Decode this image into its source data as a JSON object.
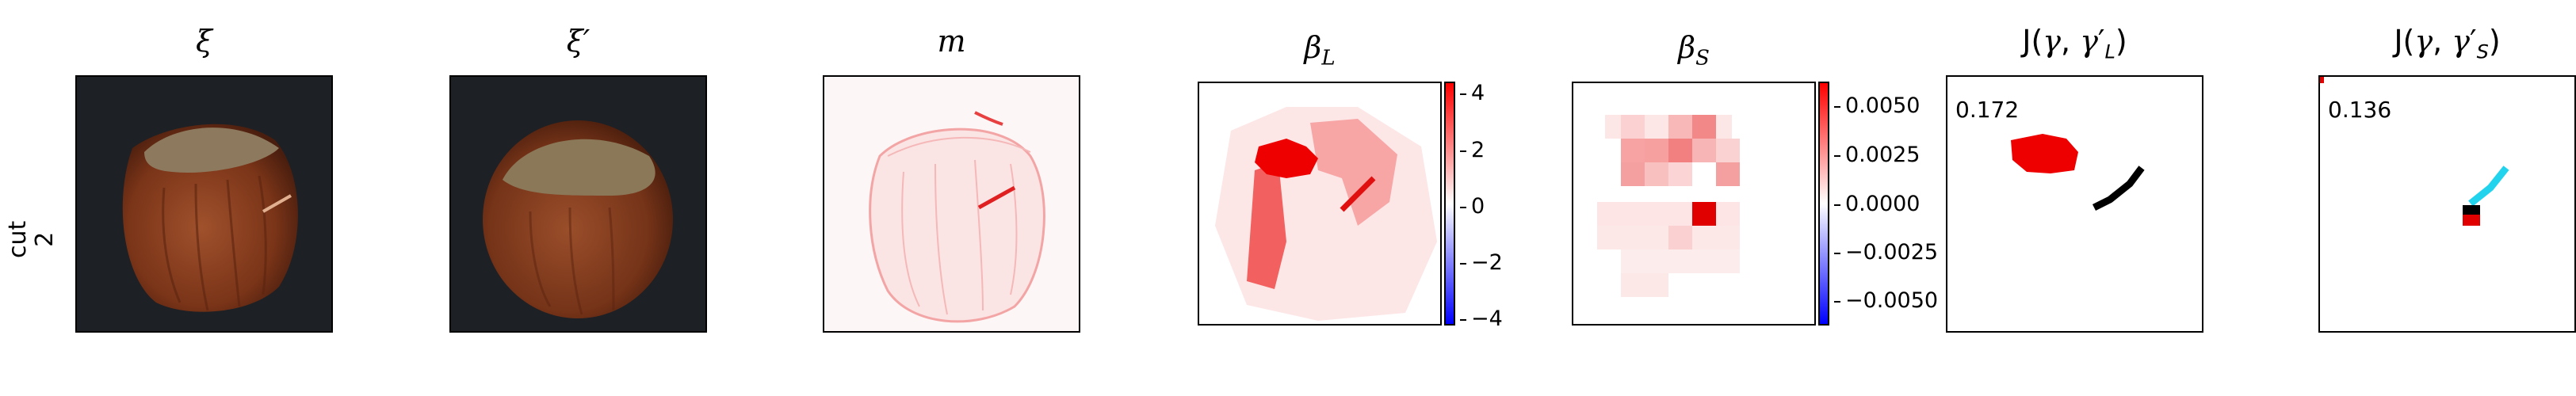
{
  "row_label": {
    "line1": "cut",
    "line2": "2"
  },
  "panels": [
    {
      "title": "ξ"
    },
    {
      "title": "ξ′"
    },
    {
      "title": "m"
    },
    {
      "title": "βL"
    },
    {
      "title": "βS"
    },
    {
      "title": "J(γ, γ′L)"
    },
    {
      "title": "J(γ, γ′S)"
    }
  ],
  "colorbar_L": {
    "ticks": [
      "4",
      "2",
      "0",
      "−2",
      "−4"
    ]
  },
  "colorbar_S": {
    "ticks": [
      "0.0050",
      "0.0025",
      "0.0000",
      "−0.0025",
      "−0.0050"
    ]
  },
  "scores": {
    "L": "0.172",
    "S": "0.136"
  },
  "colors": {
    "positive": "#ff0000",
    "negative": "#0000ff",
    "neutral": "#ffffff",
    "mask_black": "#000000",
    "mask_cyan": "#22d3ee"
  }
}
